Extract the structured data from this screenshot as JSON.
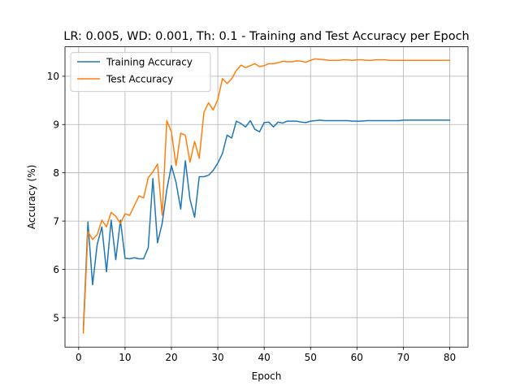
{
  "chart_data": {
    "type": "line",
    "title": "LR: 0.005, WD: 0.001, Th: 0.1 - Training and Test Accuracy per Epoch",
    "xlabel": "Epoch",
    "ylabel": "Accuracy (%)",
    "xlim": [
      -2.95,
      83.95
    ],
    "ylim": [
      4.39,
      10.61
    ],
    "xticks": [
      0,
      10,
      20,
      30,
      40,
      50,
      60,
      70,
      80
    ],
    "yticks": [
      5,
      6,
      7,
      8,
      9,
      10
    ],
    "grid": true,
    "legend_position": "top-left",
    "x": [
      1,
      2,
      3,
      4,
      5,
      6,
      7,
      8,
      9,
      10,
      11,
      12,
      13,
      14,
      15,
      16,
      17,
      18,
      19,
      20,
      21,
      22,
      23,
      24,
      25,
      26,
      27,
      28,
      29,
      30,
      31,
      32,
      33,
      34,
      35,
      36,
      37,
      38,
      39,
      40,
      41,
      42,
      43,
      44,
      45,
      46,
      47,
      48,
      49,
      50,
      51,
      52,
      53,
      54,
      55,
      56,
      57,
      58,
      59,
      60,
      61,
      62,
      63,
      64,
      65,
      66,
      67,
      68,
      69,
      70,
      71,
      72,
      73,
      74,
      75,
      76,
      77,
      78,
      79,
      80
    ],
    "series": [
      {
        "name": "Training Accuracy",
        "color": "#1f77b4",
        "values": [
          4.75,
          6.98,
          5.68,
          6.52,
          6.88,
          5.95,
          7.02,
          6.2,
          7.02,
          6.23,
          6.22,
          6.24,
          6.22,
          6.22,
          6.45,
          7.88,
          6.55,
          6.95,
          7.65,
          8.15,
          7.8,
          7.25,
          8.25,
          7.45,
          7.08,
          7.92,
          7.92,
          7.95,
          8.05,
          8.2,
          8.4,
          8.78,
          8.72,
          9.07,
          9.02,
          8.95,
          9.08,
          8.9,
          8.85,
          9.04,
          9.05,
          8.95,
          9.05,
          9.03,
          9.07,
          9.07,
          9.07,
          9.05,
          9.04,
          9.07,
          9.08,
          9.09,
          9.08,
          9.08,
          9.08,
          9.08,
          9.08,
          9.08,
          9.07,
          9.07,
          9.07,
          9.08,
          9.08,
          9.08,
          9.08,
          9.08,
          9.08,
          9.08,
          9.08,
          9.09,
          9.09,
          9.09,
          9.09,
          9.09,
          9.09,
          9.09,
          9.09,
          9.09,
          9.09,
          9.09
        ]
      },
      {
        "name": "Test Accuracy",
        "color": "#ff7f0e",
        "values": [
          4.68,
          6.78,
          6.62,
          6.72,
          7.02,
          6.88,
          7.18,
          7.1,
          6.95,
          7.15,
          7.12,
          7.32,
          7.52,
          7.48,
          7.9,
          8.02,
          8.18,
          7.12,
          9.08,
          8.85,
          8.15,
          8.82,
          8.78,
          8.22,
          8.65,
          8.3,
          9.25,
          9.45,
          9.3,
          9.52,
          9.95,
          9.85,
          9.95,
          10.12,
          10.23,
          10.18,
          10.22,
          10.26,
          10.2,
          10.22,
          10.26,
          10.26,
          10.28,
          10.31,
          10.3,
          10.3,
          10.32,
          10.31,
          10.29,
          10.33,
          10.36,
          10.35,
          10.34,
          10.33,
          10.33,
          10.33,
          10.34,
          10.34,
          10.33,
          10.34,
          10.34,
          10.33,
          10.33,
          10.34,
          10.34,
          10.34,
          10.33,
          10.33,
          10.33,
          10.33,
          10.33,
          10.33,
          10.33,
          10.33,
          10.33,
          10.33,
          10.33,
          10.33,
          10.33,
          10.33
        ]
      }
    ]
  }
}
